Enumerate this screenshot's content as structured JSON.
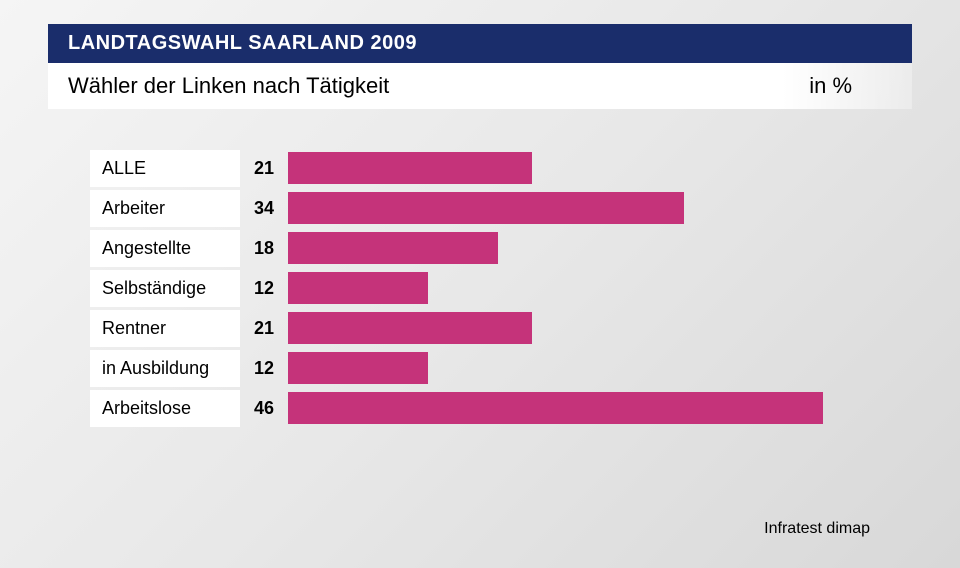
{
  "header": {
    "title": "LANDTAGSWAHL SAARLAND 2009",
    "subtitle": "Wähler der Linken nach Tätigkeit",
    "unit": "in %"
  },
  "chart": {
    "type": "bar",
    "orientation": "horizontal",
    "bar_color": "#c5337a",
    "max_value": 50,
    "label_bg": "#ffffff",
    "label_fontsize": 18,
    "value_fontsize": 18,
    "value_fontweight": "bold",
    "rows": [
      {
        "label": "ALLE",
        "value": 21
      },
      {
        "label": "Arbeiter",
        "value": 34
      },
      {
        "label": "Angestellte",
        "value": 18
      },
      {
        "label": "Selbständige",
        "value": 12
      },
      {
        "label": "Rentner",
        "value": 21
      },
      {
        "label": "in Ausbildung",
        "value": 12
      },
      {
        "label": "Arbeitslose",
        "value": 46
      }
    ]
  },
  "source": "Infratest dimap",
  "colors": {
    "header_bg": "#1a2d6b",
    "header_text": "#ffffff",
    "subtitle_bg": "#ffffff",
    "subtitle_text": "#000000",
    "body_bg_start": "#f5f5f5",
    "body_bg_end": "#d8d8d8"
  }
}
